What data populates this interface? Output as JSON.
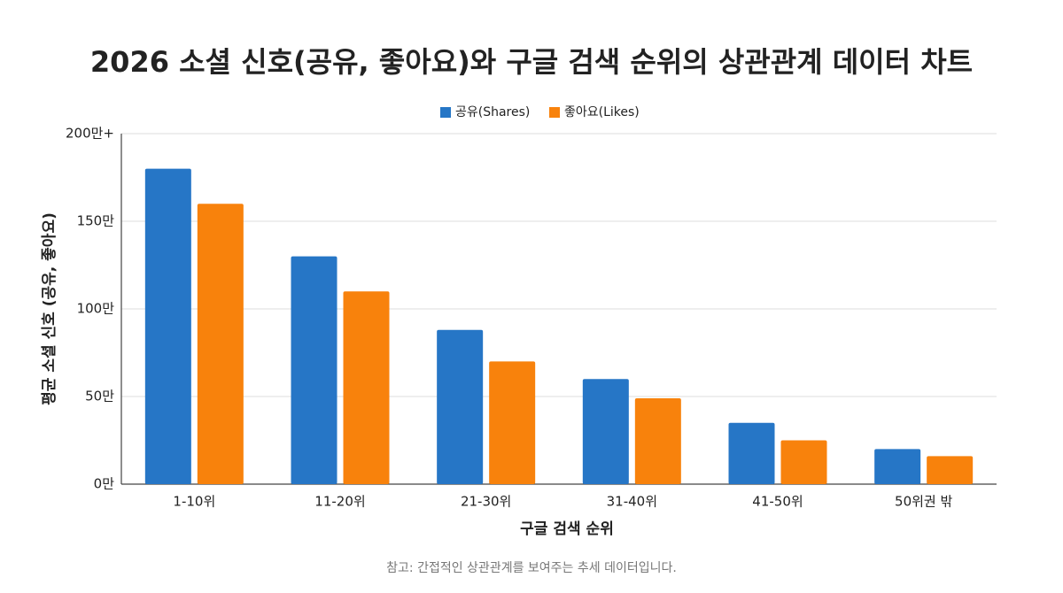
{
  "chart_data": {
    "type": "bar",
    "title": "2026 소셜 신호(공유, 좋아요)와 구글 검색 순위의 상관관계 데이터 차트",
    "x_label": "구글 검색 순위",
    "y_label": "평균 소셜 신호 (공유, 좋아요)",
    "note": "참고: 간접적인 상관관계를 보여주는 추세 데이터입니다.",
    "categories": [
      "1-10위",
      "11-20위",
      "21-30위",
      "31-40위",
      "41-50위",
      "50위권 밖"
    ],
    "series": [
      {
        "name": "공유(Shares)",
        "color": "#2676c6",
        "values": [
          180,
          130,
          88,
          60,
          35,
          20
        ]
      },
      {
        "name": "좋아요(Likes)",
        "color": "#f8820c",
        "values": [
          160,
          110,
          70,
          49,
          25,
          16
        ]
      }
    ],
    "ylim": [
      0,
      200
    ],
    "yticks": [
      {
        "value": 0,
        "label": "0만"
      },
      {
        "value": 50,
        "label": "50만"
      },
      {
        "value": 100,
        "label": "100만"
      },
      {
        "value": 150,
        "label": "150만"
      },
      {
        "value": 200,
        "label": "200만+"
      }
    ],
    "grid": true,
    "legend": "top"
  }
}
